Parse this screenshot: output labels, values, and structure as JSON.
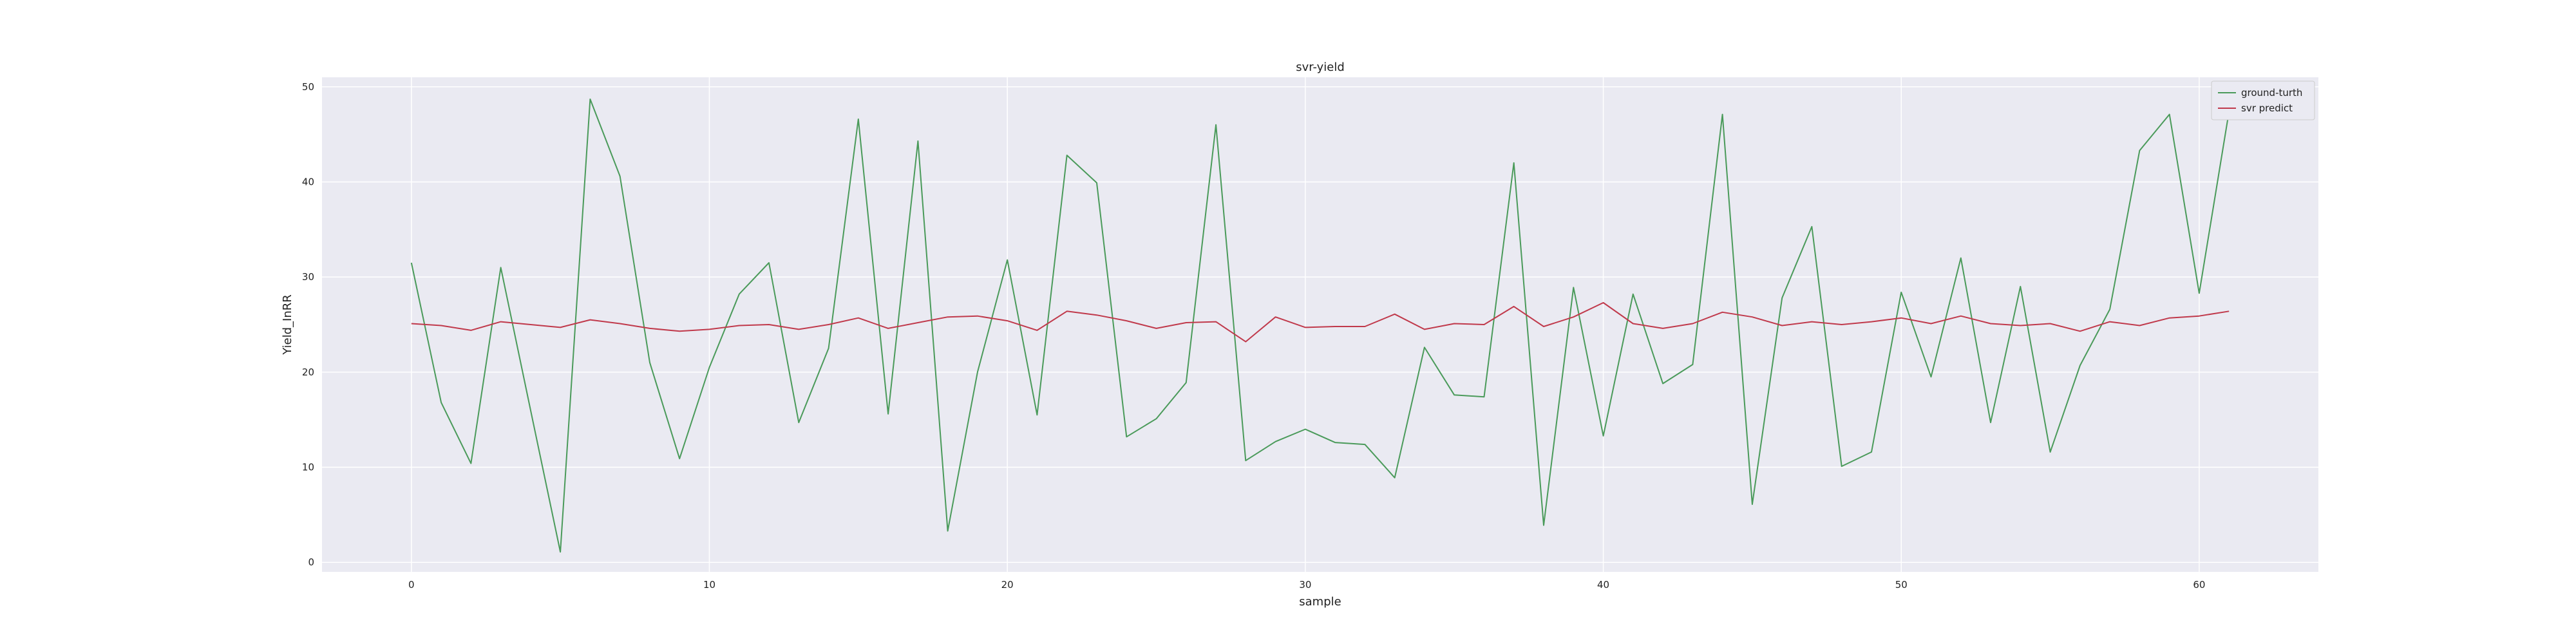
{
  "chart_data": {
    "type": "line",
    "title": "svr-yield",
    "xlabel": "sample",
    "ylabel": "Yield_InRR",
    "xlim": [
      -3,
      64
    ],
    "ylim": [
      -1,
      51
    ],
    "xticks": [
      0,
      10,
      20,
      30,
      40,
      50,
      60
    ],
    "yticks": [
      0,
      10,
      20,
      30,
      40,
      50
    ],
    "grid": true,
    "legend_position": "top-right",
    "x": [
      0,
      1,
      2,
      3,
      4,
      5,
      6,
      7,
      8,
      9,
      10,
      11,
      12,
      13,
      14,
      15,
      16,
      17,
      18,
      19,
      20,
      21,
      22,
      23,
      24,
      25,
      26,
      27,
      28,
      29,
      30,
      31,
      32,
      33,
      34,
      35,
      36,
      37,
      38,
      39,
      40,
      41,
      42,
      43,
      44,
      45,
      46,
      47,
      48,
      49,
      50,
      51,
      52,
      53,
      54,
      55,
      56,
      57,
      58,
      59,
      60,
      61
    ],
    "series": [
      {
        "name": "ground-turth",
        "color": "#4a9a5a",
        "values": [
          31.5,
          16.8,
          10.4,
          31.0,
          16.0,
          1.1,
          48.7,
          40.6,
          21.0,
          10.9,
          20.5,
          28.2,
          31.5,
          14.7,
          22.5,
          46.6,
          15.6,
          44.3,
          3.3,
          20.0,
          31.8,
          15.5,
          42.8,
          39.9,
          13.2,
          15.1,
          18.9,
          46.0,
          10.7,
          12.7,
          14.0,
          12.6,
          12.4,
          8.9,
          22.6,
          17.6,
          17.4,
          42.0,
          3.9,
          28.9,
          13.3,
          28.2,
          18.8,
          20.8,
          47.1,
          6.1,
          27.8,
          35.3,
          10.1,
          11.6,
          28.4,
          19.5,
          32.0,
          14.7,
          29.0,
          11.6,
          20.7,
          26.6,
          43.3,
          47.1,
          28.3,
          47.4
        ]
      },
      {
        "name": "svr predict",
        "color": "#c0394b",
        "values": [
          25.1,
          24.9,
          24.4,
          25.3,
          25.0,
          24.7,
          25.5,
          25.1,
          24.6,
          24.3,
          24.5,
          24.9,
          25.0,
          24.5,
          25.0,
          25.7,
          24.6,
          25.2,
          25.8,
          25.9,
          25.4,
          24.4,
          26.4,
          26.0,
          25.4,
          24.6,
          25.2,
          25.3,
          23.2,
          25.8,
          24.7,
          24.8,
          24.8,
          26.1,
          24.5,
          25.1,
          25.0,
          26.9,
          24.8,
          25.8,
          27.3,
          25.1,
          24.6,
          25.1,
          26.3,
          25.8,
          24.9,
          25.3,
          25.0,
          25.3,
          25.7,
          25.1,
          25.9,
          25.1,
          24.9,
          25.1,
          24.3,
          25.3,
          24.9,
          25.7,
          25.9,
          26.4
        ]
      }
    ]
  }
}
